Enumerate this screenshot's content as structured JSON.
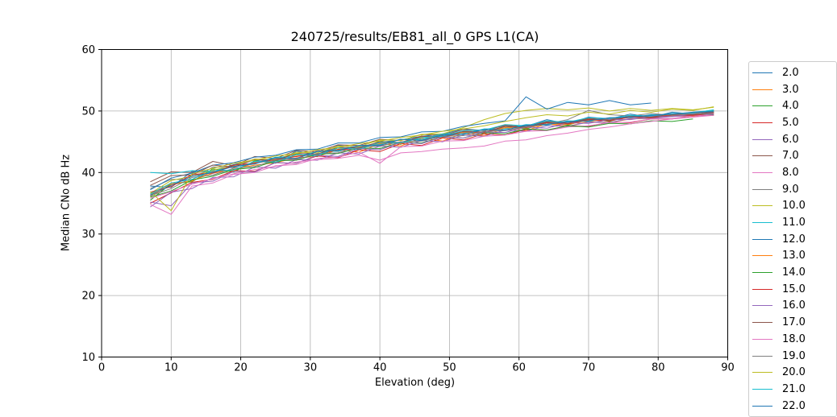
{
  "chart_data": {
    "type": "line",
    "title": "240725/results/EB81_all_0 GPS L1(CA)",
    "xlabel": "Elevation (deg)",
    "ylabel": "Median CNo dB Hz",
    "xlim": [
      0,
      90
    ],
    "ylim": [
      10,
      60
    ],
    "x_ticks": [
      0,
      10,
      20,
      30,
      40,
      50,
      60,
      70,
      80,
      90
    ],
    "y_ticks": [
      10,
      20,
      30,
      40,
      50,
      60
    ],
    "grid": true,
    "grid_color": "#b0b0b0",
    "spine_color": "#000000",
    "legend_position": "right",
    "palette": [
      "#1f77b4",
      "#ff7f0e",
      "#2ca02c",
      "#d62728",
      "#9467bd",
      "#8c564b",
      "#e377c2",
      "#7f7f7f",
      "#bcbd22",
      "#17becf"
    ],
    "x": [
      7,
      10,
      13,
      16,
      19,
      22,
      25,
      28,
      31,
      34,
      37,
      40,
      43,
      46,
      49,
      52,
      55,
      58,
      61,
      64,
      67,
      70,
      73,
      76,
      79,
      82,
      85,
      88
    ],
    "series": [
      {
        "label": "2.0",
        "color": "#1f77b4",
        "values": [
          37.8,
          37.6,
          40.2,
          40.1,
          41.3,
          42.0,
          41.6,
          43.5,
          42.9,
          44.4,
          44.1,
          44.9,
          45.3,
          45.9,
          46.2,
          47.1,
          46.8,
          47.7,
          47.5,
          48.6,
          47.9,
          49.0,
          48.7,
          49.5,
          49.0,
          49.8,
          49.5,
          50.1
        ]
      },
      {
        "label": "3.0",
        "color": "#ff7f0e",
        "values": [
          36.1,
          38.0,
          38.7,
          39.9,
          40.5,
          41.2,
          41.6,
          42.4,
          42.6,
          43.7,
          43.3,
          44.7,
          44.3,
          45.6,
          45.1,
          46.4,
          46.0,
          47.2,
          46.8,
          47.9,
          47.5,
          48.3,
          48.1,
          48.7,
          48.8,
          49.2,
          49.1,
          49.7
        ]
      },
      {
        "label": "4.0",
        "color": "#2ca02c",
        "values": [
          35.5,
          38.2,
          38.5,
          40.6,
          40.1,
          41.9,
          41.5,
          43.0,
          42.6,
          44.0,
          43.7,
          45.1,
          44.6,
          45.9,
          45.6,
          46.7,
          46.3,
          47.5,
          47.1,
          48.1,
          47.7,
          48.7,
          48.3,
          49.2,
          48.8,
          49.4,
          49.4,
          49.8
        ]
      },
      {
        "label": "5.0",
        "color": "#d62728",
        "values": [
          35.0,
          36.7,
          38.4,
          38.9,
          40.3,
          40.2,
          41.6,
          41.5,
          42.7,
          42.4,
          43.7,
          43.4,
          44.7,
          44.4,
          45.6,
          45.3,
          46.3,
          46.1,
          47.0,
          46.9,
          47.6,
          47.5,
          48.2,
          48.1,
          48.7,
          48.7,
          49.2,
          49.3
        ]
      },
      {
        "label": "6.0",
        "color": "#9467bd",
        "values": [
          34.4,
          36.8,
          37.4,
          39.2,
          39.3,
          40.9,
          40.7,
          42.1,
          42.0,
          43.2,
          43.0,
          44.3,
          44.1,
          45.2,
          45.0,
          46.1,
          45.9,
          46.9,
          46.7,
          47.6,
          47.5,
          48.2,
          48.1,
          48.8,
          48.8,
          49.1,
          49.3,
          49.5
        ]
      },
      {
        "label": "7.0",
        "color": "#8c564b",
        "values": [
          38.5,
          40.1,
          40.0,
          41.8,
          41.1,
          42.6,
          42.3,
          43.6,
          43.4,
          44.5,
          44.4,
          45.4,
          45.2,
          46.2,
          46.0,
          47.0,
          46.8,
          47.7,
          47.5,
          48.3,
          48.1,
          48.8,
          48.6,
          49.2,
          49.2,
          49.6,
          49.6,
          49.9
        ]
      },
      {
        "label": "8.0",
        "color": "#e377c2",
        "values": [
          34.8,
          33.2,
          37.8,
          38.3,
          39.7,
          40.0,
          41.1,
          41.3,
          42.3,
          42.5,
          43.3,
          41.5,
          44.2,
          44.3,
          45.1,
          45.2,
          45.9,
          46.1,
          46.7,
          46.8,
          47.4,
          47.6,
          48.1,
          48.2,
          48.7,
          48.8,
          49.2,
          49.4
        ]
      },
      {
        "label": "9.0",
        "color": "#7f7f7f",
        "values": [
          37.4,
          38.9,
          38.8,
          40.9,
          40.8,
          41.7,
          42.3,
          42.2,
          43.6,
          43.4,
          44.3,
          44.6,
          45.4,
          45.3,
          46.2,
          46.5,
          46.4,
          47.6,
          47.2,
          48.2,
          48.0,
          48.6,
          48.7,
          49.1,
          49.2,
          49.4,
          49.6,
          50.0
        ]
      },
      {
        "label": "10.0",
        "color": "#bcbd22",
        "values": [
          36.6,
          38.7,
          39.4,
          40.4,
          41.1,
          42.2,
          42.1,
          43.3,
          43.2,
          44.3,
          44.2,
          45.3,
          45.2,
          46.2,
          46.3,
          47.3,
          48.6,
          49.6,
          50.1,
          50.4,
          50.2,
          50.5,
          50.0,
          50.4,
          50.1,
          50.4,
          50.2,
          50.6
        ]
      },
      {
        "label": "11.0",
        "color": "#17becf",
        "values": [
          40.0,
          39.8,
          40.3,
          40.2,
          41.0,
          41.4,
          42.5,
          42.6,
          43.4,
          43.5,
          44.4,
          44.5,
          45.4,
          45.4,
          46.3,
          46.3,
          47.1,
          47.1,
          47.8,
          47.7,
          48.4,
          48.3,
          48.9,
          48.9,
          49.4,
          49.3,
          49.8,
          50.1
        ]
      },
      {
        "label": "12.0",
        "color": "#1f77b4",
        "values": [
          37.2,
          39.1,
          39.9,
          41.2,
          41.6,
          42.5,
          42.8,
          43.7,
          43.8,
          44.8,
          44.8,
          45.7,
          45.8,
          46.6,
          46.7,
          47.5,
          48.0,
          48.4,
          52.3,
          50.3,
          51.4,
          51.0,
          51.7,
          51.0,
          51.3,
          null,
          null,
          null
        ]
      },
      {
        "label": "13.0",
        "color": "#ff7f0e",
        "values": [
          36.4,
          38.2,
          38.6,
          40.2,
          40.3,
          41.6,
          41.9,
          42.7,
          42.9,
          43.8,
          43.9,
          44.8,
          44.7,
          45.8,
          45.6,
          46.6,
          46.4,
          47.3,
          47.2,
          47.9,
          47.8,
          48.5,
          48.4,
          49.0,
          48.9,
          49.4,
          49.3,
          49.7
        ]
      },
      {
        "label": "14.0",
        "color": "#2ca02c",
        "values": [
          36.0,
          37.0,
          38.8,
          39.4,
          40.5,
          40.8,
          41.9,
          42.0,
          43.0,
          43.1,
          44.0,
          43.9,
          44.9,
          44.8,
          45.8,
          45.6,
          46.5,
          46.3,
          47.1,
          46.9,
          47.6,
          47.4,
          48.0,
          47.9,
          48.4,
          48.3,
          48.7,
          null
        ]
      },
      {
        "label": "15.0",
        "color": "#d62728",
        "values": [
          36.8,
          37.7,
          39.7,
          39.9,
          41.2,
          41.5,
          42.1,
          42.6,
          43.0,
          43.7,
          43.9,
          45.0,
          44.8,
          45.9,
          45.7,
          46.7,
          46.5,
          47.5,
          47.3,
          48.1,
          47.9,
          48.6,
          48.4,
          49.0,
          48.9,
          49.3,
          49.3,
          49.6
        ]
      },
      {
        "label": "16.0",
        "color": "#9467bd",
        "values": [
          35.2,
          34.6,
          38.3,
          38.6,
          40.2,
          40.1,
          41.6,
          41.5,
          42.8,
          42.6,
          43.9,
          43.7,
          44.9,
          44.7,
          45.8,
          45.6,
          46.6,
          46.5,
          47.4,
          47.2,
          48.1,
          48.0,
          48.6,
          48.6,
          49.1,
          49.1,
          49.5,
          49.6
        ]
      },
      {
        "label": "17.0",
        "color": "#8c564b",
        "values": [
          37.9,
          39.5,
          39.6,
          41.2,
          40.9,
          42.1,
          42.0,
          43.1,
          43.0,
          44.1,
          44.0,
          45.0,
          44.9,
          45.9,
          45.8,
          46.7,
          46.6,
          47.5,
          47.4,
          48.2,
          48.0,
          48.7,
          48.5,
          49.1,
          49.0,
          49.5,
          49.4,
          49.8
        ]
      },
      {
        "label": "18.0",
        "color": "#e377c2",
        "values": [
          35.8,
          36.9,
          38.1,
          39.0,
          39.8,
          40.5,
          41.0,
          41.7,
          42.1,
          42.3,
          42.8,
          42.0,
          43.2,
          43.4,
          43.8,
          44.0,
          44.3,
          45.1,
          45.3,
          46.0,
          46.4,
          47.0,
          47.4,
          47.9,
          48.3,
          48.7,
          49.0,
          49.3
        ]
      },
      {
        "label": "19.0",
        "color": "#7f7f7f",
        "values": [
          36.2,
          37.4,
          39.2,
          39.6,
          40.7,
          41.0,
          42.0,
          42.1,
          43.1,
          43.2,
          44.1,
          44.3,
          45.0,
          45.1,
          45.9,
          46.0,
          46.7,
          46.8,
          47.4,
          47.9,
          48.6,
          50.1,
          49.4,
          49.2,
          49.6,
          49.3,
          49.6,
          49.4
        ]
      },
      {
        "label": "20.0",
        "color": "#bcbd22",
        "values": [
          36.9,
          33.8,
          39.8,
          40.7,
          41.5,
          42.0,
          42.7,
          43.1,
          43.7,
          44.1,
          44.7,
          45.1,
          45.7,
          46.1,
          46.7,
          47.1,
          47.6,
          48.3,
          48.9,
          49.4,
          49.2,
          49.8,
          49.5,
          50.1,
          49.8,
          50.3,
          50.1,
          50.7
        ]
      },
      {
        "label": "21.0",
        "color": "#17becf",
        "values": [
          36.5,
          38.3,
          38.9,
          40.3,
          40.4,
          41.8,
          41.7,
          42.9,
          42.8,
          44.0,
          43.8,
          44.9,
          44.8,
          45.7,
          45.9,
          46.8,
          46.9,
          47.8,
          47.6,
          48.4,
          48.2,
          48.9,
          48.8,
          49.3,
          49.2,
          49.6,
          49.7,
          50.2
        ]
      },
      {
        "label": "22.0",
        "color": "#1f77b4",
        "values": [
          36.3,
          37.9,
          39.4,
          40.0,
          41.0,
          41.4,
          42.4,
          42.3,
          43.4,
          43.6,
          44.4,
          44.4,
          45.4,
          45.2,
          46.1,
          46.2,
          47.0,
          46.9,
          47.7,
          47.8,
          48.3,
          48.4,
          48.9,
          49.0,
          49.3,
          49.5,
          49.8,
          49.9
        ]
      }
    ]
  }
}
